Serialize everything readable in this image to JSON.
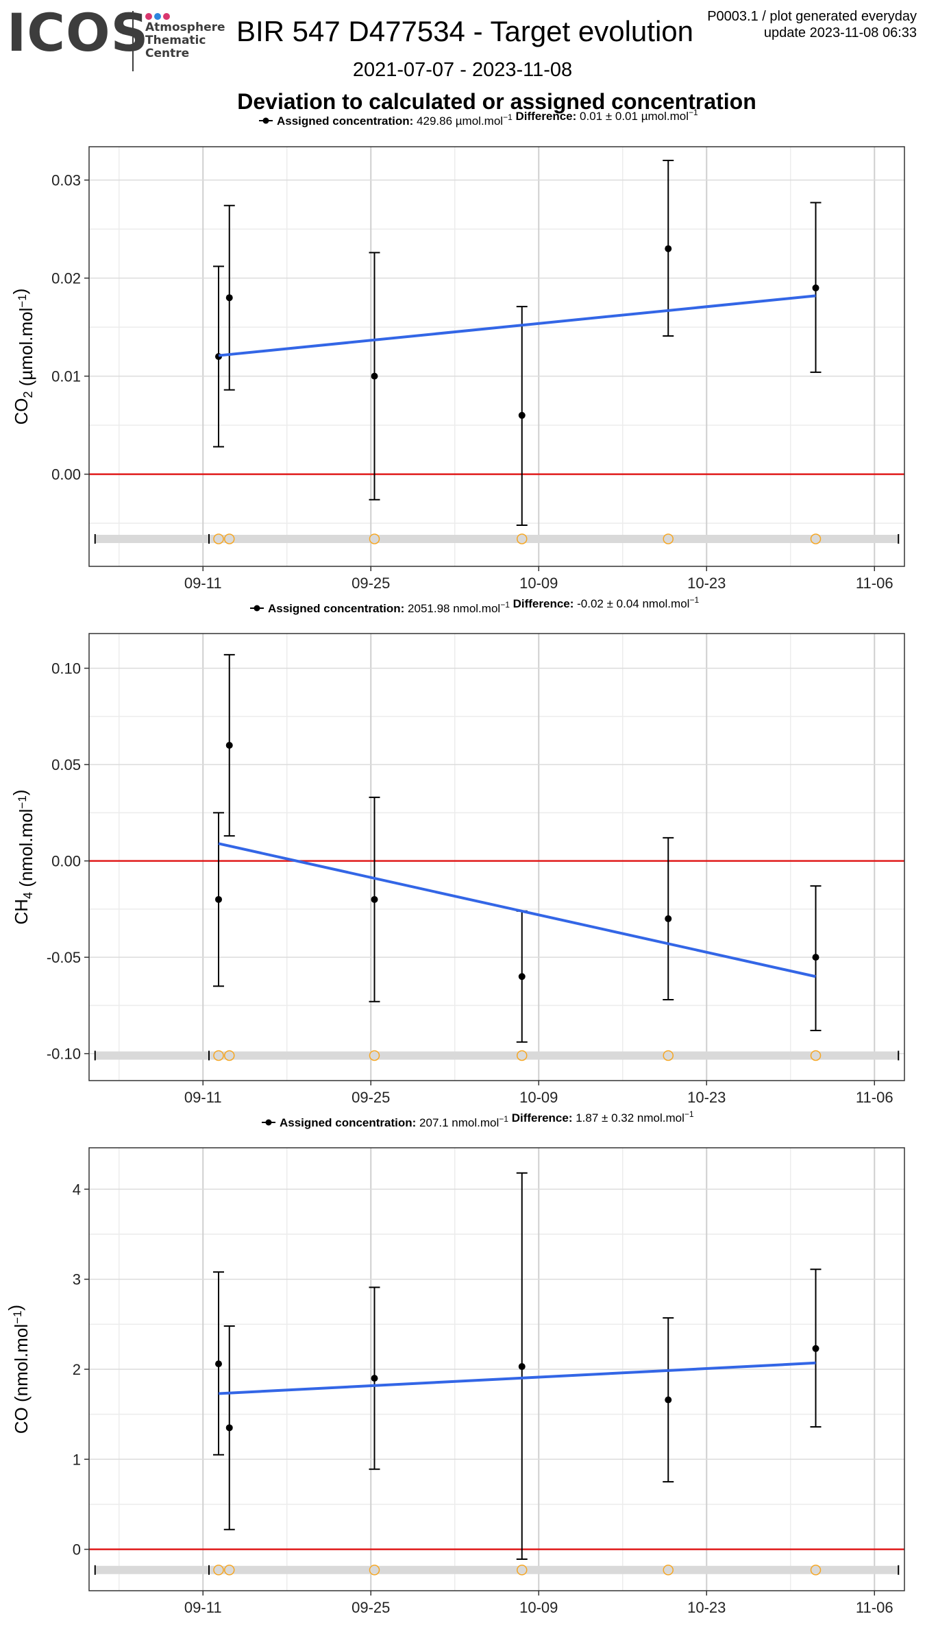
{
  "header": {
    "logo_text": "ICOS",
    "logo_sub": [
      "Atmosphere",
      "Thematic",
      "Centre"
    ],
    "logo_dot_colors": [
      "#d9376e",
      "#2e86de",
      "#d9376e"
    ],
    "title": "BIR 547 D477534 - Target evolution",
    "meta_line1": "P0003.1 / plot generated everyday",
    "meta_line2": "update  2023-11-08 06:33",
    "date_range": "2021-07-07 - 2023-11-08",
    "subtitle": "Deviation to calculated or assigned concentration"
  },
  "colors": {
    "fit": "#3366e6",
    "zero": "#e01b1b",
    "points": "#000000",
    "flags": "#f5a623",
    "band": "#d9d9d9"
  },
  "chart_data": [
    {
      "type": "scatter",
      "gas": "CO2",
      "ylabel": "CO2 (µmol.mol-1)",
      "legend": {
        "assigned_label": "Assigned concentration:",
        "assigned_value": "429.86 µmol.mol-1",
        "difference_label": "Difference:",
        "difference_value": "0.01 ± 0.01 µmol.mol-1"
      },
      "x_tick_labels": [
        "09-11",
        "09-25",
        "10-09",
        "10-23",
        "11-06"
      ],
      "x_tick_days": [
        0,
        14,
        28,
        42,
        56
      ],
      "xlim": [
        -9.5,
        58.5
      ],
      "ylim": [
        -0.0094,
        0.0334
      ],
      "y_ticks": [
        0.0,
        0.01,
        0.02,
        0.03
      ],
      "y_tick_labels": [
        "0.00",
        "0.01",
        "0.02",
        "0.03"
      ],
      "grid": true,
      "points": [
        {
          "x": 1.3,
          "y": 0.012,
          "ymin": 0.0028,
          "ymax": 0.0212
        },
        {
          "x": 2.2,
          "y": 0.018,
          "ymin": 0.0086,
          "ymax": 0.0274
        },
        {
          "x": 14.3,
          "y": 0.01,
          "ymin": -0.0026,
          "ymax": 0.0226
        },
        {
          "x": 26.6,
          "y": 0.006,
          "ymin": -0.0052,
          "ymax": 0.0171
        },
        {
          "x": 38.8,
          "y": 0.023,
          "ymin": 0.0141,
          "ymax": 0.032
        },
        {
          "x": 51.1,
          "y": 0.019,
          "ymin": 0.0104,
          "ymax": 0.0277
        }
      ],
      "fit": {
        "x": [
          1.3,
          51.1
        ],
        "y": [
          0.0121,
          0.0182
        ]
      },
      "flags_y": -0.0066,
      "flags_x": [
        0.5,
        1.3,
        2.2,
        14.3,
        26.6,
        38.8,
        51.1
      ],
      "band_x": [
        -9.0,
        58.0
      ]
    },
    {
      "type": "scatter",
      "gas": "CH4",
      "ylabel": "CH4 (nmol.mol-1)",
      "legend": {
        "assigned_label": "Assigned concentration:",
        "assigned_value": "2051.98 nmol.mol-1",
        "difference_label": "Difference:",
        "difference_value": "-0.02 ± 0.04 nmol.mol-1"
      },
      "x_tick_labels": [
        "09-11",
        "09-25",
        "10-09",
        "10-23",
        "11-06"
      ],
      "x_tick_days": [
        0,
        14,
        28,
        42,
        56
      ],
      "xlim": [
        -9.5,
        58.5
      ],
      "ylim": [
        -0.114,
        0.118
      ],
      "y_ticks": [
        -0.1,
        -0.05,
        0.0,
        0.05,
        0.1
      ],
      "y_tick_labels": [
        "-0.10",
        "-0.05",
        "0.00",
        "0.05",
        "0.10"
      ],
      "grid": true,
      "points": [
        {
          "x": 1.3,
          "y": -0.02,
          "ymin": -0.065,
          "ymax": 0.025
        },
        {
          "x": 2.2,
          "y": 0.06,
          "ymin": 0.013,
          "ymax": 0.107
        },
        {
          "x": 14.3,
          "y": -0.02,
          "ymin": -0.073,
          "ymax": 0.033
        },
        {
          "x": 26.6,
          "y": -0.06,
          "ymin": -0.094,
          "ymax": -0.026
        },
        {
          "x": 38.8,
          "y": -0.03,
          "ymin": -0.072,
          "ymax": 0.012
        },
        {
          "x": 51.1,
          "y": -0.05,
          "ymin": -0.088,
          "ymax": -0.013
        }
      ],
      "fit": {
        "x": [
          1.3,
          51.1
        ],
        "y": [
          0.009,
          -0.06
        ]
      },
      "flags_y": -0.101,
      "flags_x": [
        0.5,
        1.3,
        2.2,
        14.3,
        26.6,
        38.8,
        51.1
      ],
      "band_x": [
        -9.0,
        58.0
      ]
    },
    {
      "type": "scatter",
      "gas": "CO",
      "ylabel": "CO (nmol.mol-1)",
      "legend": {
        "assigned_label": "Assigned concentration:",
        "assigned_value": "207.1 nmol.mol-1",
        "difference_label": "Difference:",
        "difference_value": "1.87 ± 0.32 nmol.mol-1"
      },
      "x_tick_labels": [
        "09-11",
        "09-25",
        "10-09",
        "10-23",
        "11-06"
      ],
      "x_tick_days": [
        0,
        14,
        28,
        42,
        56
      ],
      "xlim": [
        -9.5,
        58.5
      ],
      "ylim": [
        -0.46,
        4.46
      ],
      "y_ticks": [
        0,
        1,
        2,
        3,
        4
      ],
      "y_tick_labels": [
        "0",
        "1",
        "2",
        "3",
        "4"
      ],
      "grid": true,
      "points": [
        {
          "x": 1.3,
          "y": 2.06,
          "ymin": 1.05,
          "ymax": 3.08
        },
        {
          "x": 2.2,
          "y": 1.35,
          "ymin": 0.22,
          "ymax": 2.48
        },
        {
          "x": 14.3,
          "y": 1.9,
          "ymin": 0.89,
          "ymax": 2.91
        },
        {
          "x": 26.6,
          "y": 2.03,
          "ymin": -0.11,
          "ymax": 4.18
        },
        {
          "x": 38.8,
          "y": 1.66,
          "ymin": 0.75,
          "ymax": 2.57
        },
        {
          "x": 51.1,
          "y": 2.23,
          "ymin": 1.36,
          "ymax": 3.11
        }
      ],
      "fit": {
        "x": [
          1.3,
          51.1
        ],
        "y": [
          1.73,
          2.07
        ]
      },
      "flags_y": -0.23,
      "flags_x": [
        0.5,
        1.3,
        2.2,
        14.3,
        26.6,
        38.8,
        51.1
      ],
      "band_x": [
        -9.0,
        58.0
      ]
    }
  ]
}
